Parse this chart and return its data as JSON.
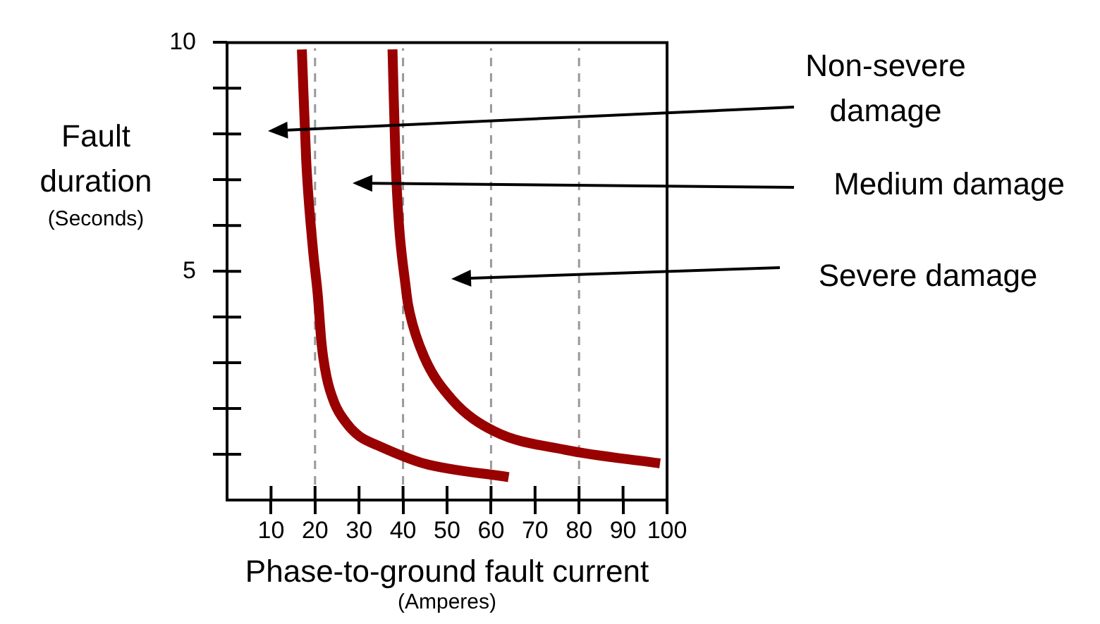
{
  "chart_data": {
    "type": "line",
    "xlabel": "Phase-to-ground fault current (Amperes)",
    "ylabel": "Fault duration (Seconds)",
    "xlim": [
      0,
      100
    ],
    "xticks": [
      10,
      20,
      30,
      40,
      50,
      60,
      70,
      80,
      90,
      100
    ],
    "ylim": [
      0,
      10
    ],
    "yticks": [
      {
        "value": 1,
        "label": null
      },
      {
        "value": 2,
        "label": null
      },
      {
        "value": 3,
        "label": null
      },
      {
        "value": 4,
        "label": null
      },
      5,
      {
        "value": 6,
        "label": null
      },
      {
        "value": 7,
        "label": null
      },
      {
        "value": 8,
        "label": null
      },
      {
        "value": 9,
        "label": null
      },
      10
    ],
    "series": [
      {
        "color": "#990000",
        "x": [
          17,
          18,
          19.5,
          20.6,
          21.5,
          22.6,
          24.5,
          27,
          30,
          34.1,
          44.7,
          64
        ],
        "values": [
          9.85,
          7.4,
          5.5,
          4.5,
          3.4,
          2.7,
          2.1,
          1.7,
          1.4,
          1.2,
          0.8,
          0.5
        ]
      },
      {
        "color": "#990000",
        "x": [
          37.6,
          38.3,
          40.8,
          41.5,
          44.7,
          51.1,
          60.8,
          76.8,
          98.4
        ],
        "values": [
          9.85,
          7.4,
          4.5,
          4.1,
          3.15,
          2.2,
          1.5,
          1.1,
          0.8
        ]
      }
    ],
    "ref_lines": [
      {
        "axis": "x",
        "value": 20,
        "color": "#999999",
        "line_style": "dashed"
      },
      {
        "axis": "x",
        "value": 40,
        "color": "#999999",
        "line_style": "dashed"
      },
      {
        "axis": "x",
        "value": 60,
        "color": "#999999",
        "line_style": "dashed"
      },
      {
        "axis": "x",
        "value": 80,
        "color": "#999999",
        "line_style": "dashed"
      }
    ],
    "annotations": [
      "Non-severe damage",
      "Medium damage",
      "Severe damage"
    ],
    "marker": "none",
    "line_style": "solid",
    "grid": false,
    "legend": false
  }
}
